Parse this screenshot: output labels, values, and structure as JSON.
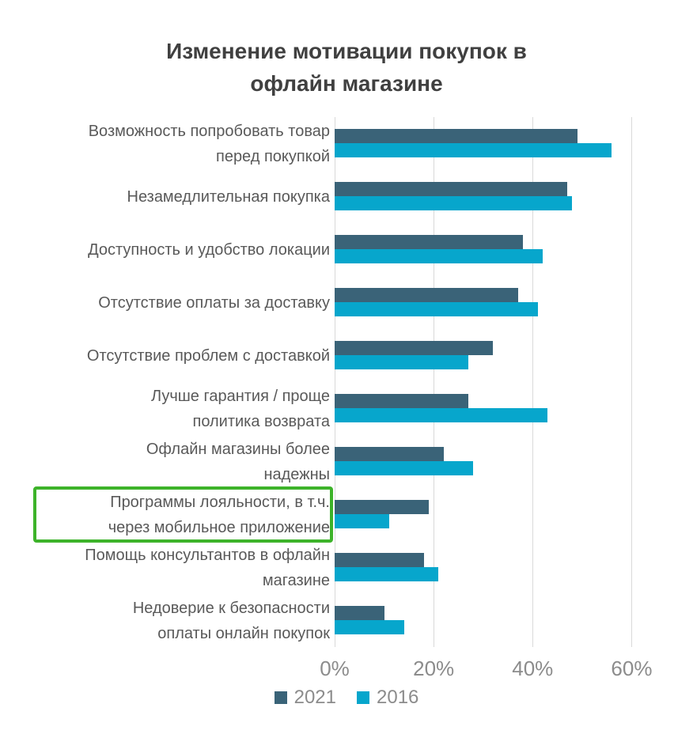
{
  "chart": {
    "title_line1": "Изменение мотивации покупок в",
    "title_line2": "офлайн магазине"
  },
  "chart_data": {
    "type": "bar",
    "orientation": "horizontal",
    "title": "Изменение мотивации покупок в офлайн магазине",
    "categories": [
      [
        "Возможность попробовать товар",
        "перед покупкой"
      ],
      [
        "Незамедлительная покупка"
      ],
      [
        "Доступность и удобство локации"
      ],
      [
        "Отсутствие оплаты за доставку"
      ],
      [
        "Отсутствие проблем с доставкой"
      ],
      [
        "Лучше гарантия / проще",
        "политика возврата"
      ],
      [
        "Офлайн магазины более",
        "надежны"
      ],
      [
        "Программы лояльности, в т.ч.",
        "через мобильное приложение"
      ],
      [
        "Помощь консультантов в офлайн",
        "магазине"
      ],
      [
        "Недоверие к безопасности",
        "оплаты онлайн покупок"
      ]
    ],
    "series": [
      {
        "name": "2021",
        "color": "#3a6378",
        "values": [
          49,
          47,
          38,
          37,
          32,
          27,
          22,
          19,
          18,
          10
        ]
      },
      {
        "name": "2016",
        "color": "#07a6cc",
        "values": [
          56,
          48,
          42,
          41,
          27,
          43,
          28,
          11,
          21,
          14
        ]
      }
    ],
    "xlabel": "",
    "ylabel": "",
    "xlim": [
      0,
      70
    ],
    "x_ticks": [
      "0%",
      "20%",
      "40%",
      "60%"
    ],
    "x_tick_values": [
      0,
      20,
      40,
      60
    ],
    "grid": true,
    "legend_position": "bottom",
    "highlight": {
      "category_index": 7,
      "border_color": "#3db32a"
    }
  },
  "colors": {
    "background": "#ffffff",
    "title": "#404040",
    "category_label": "#595959",
    "tick_label": "#8c8c8c",
    "legend_label": "#8c8c8c",
    "gridline": "#d9d9d9"
  }
}
